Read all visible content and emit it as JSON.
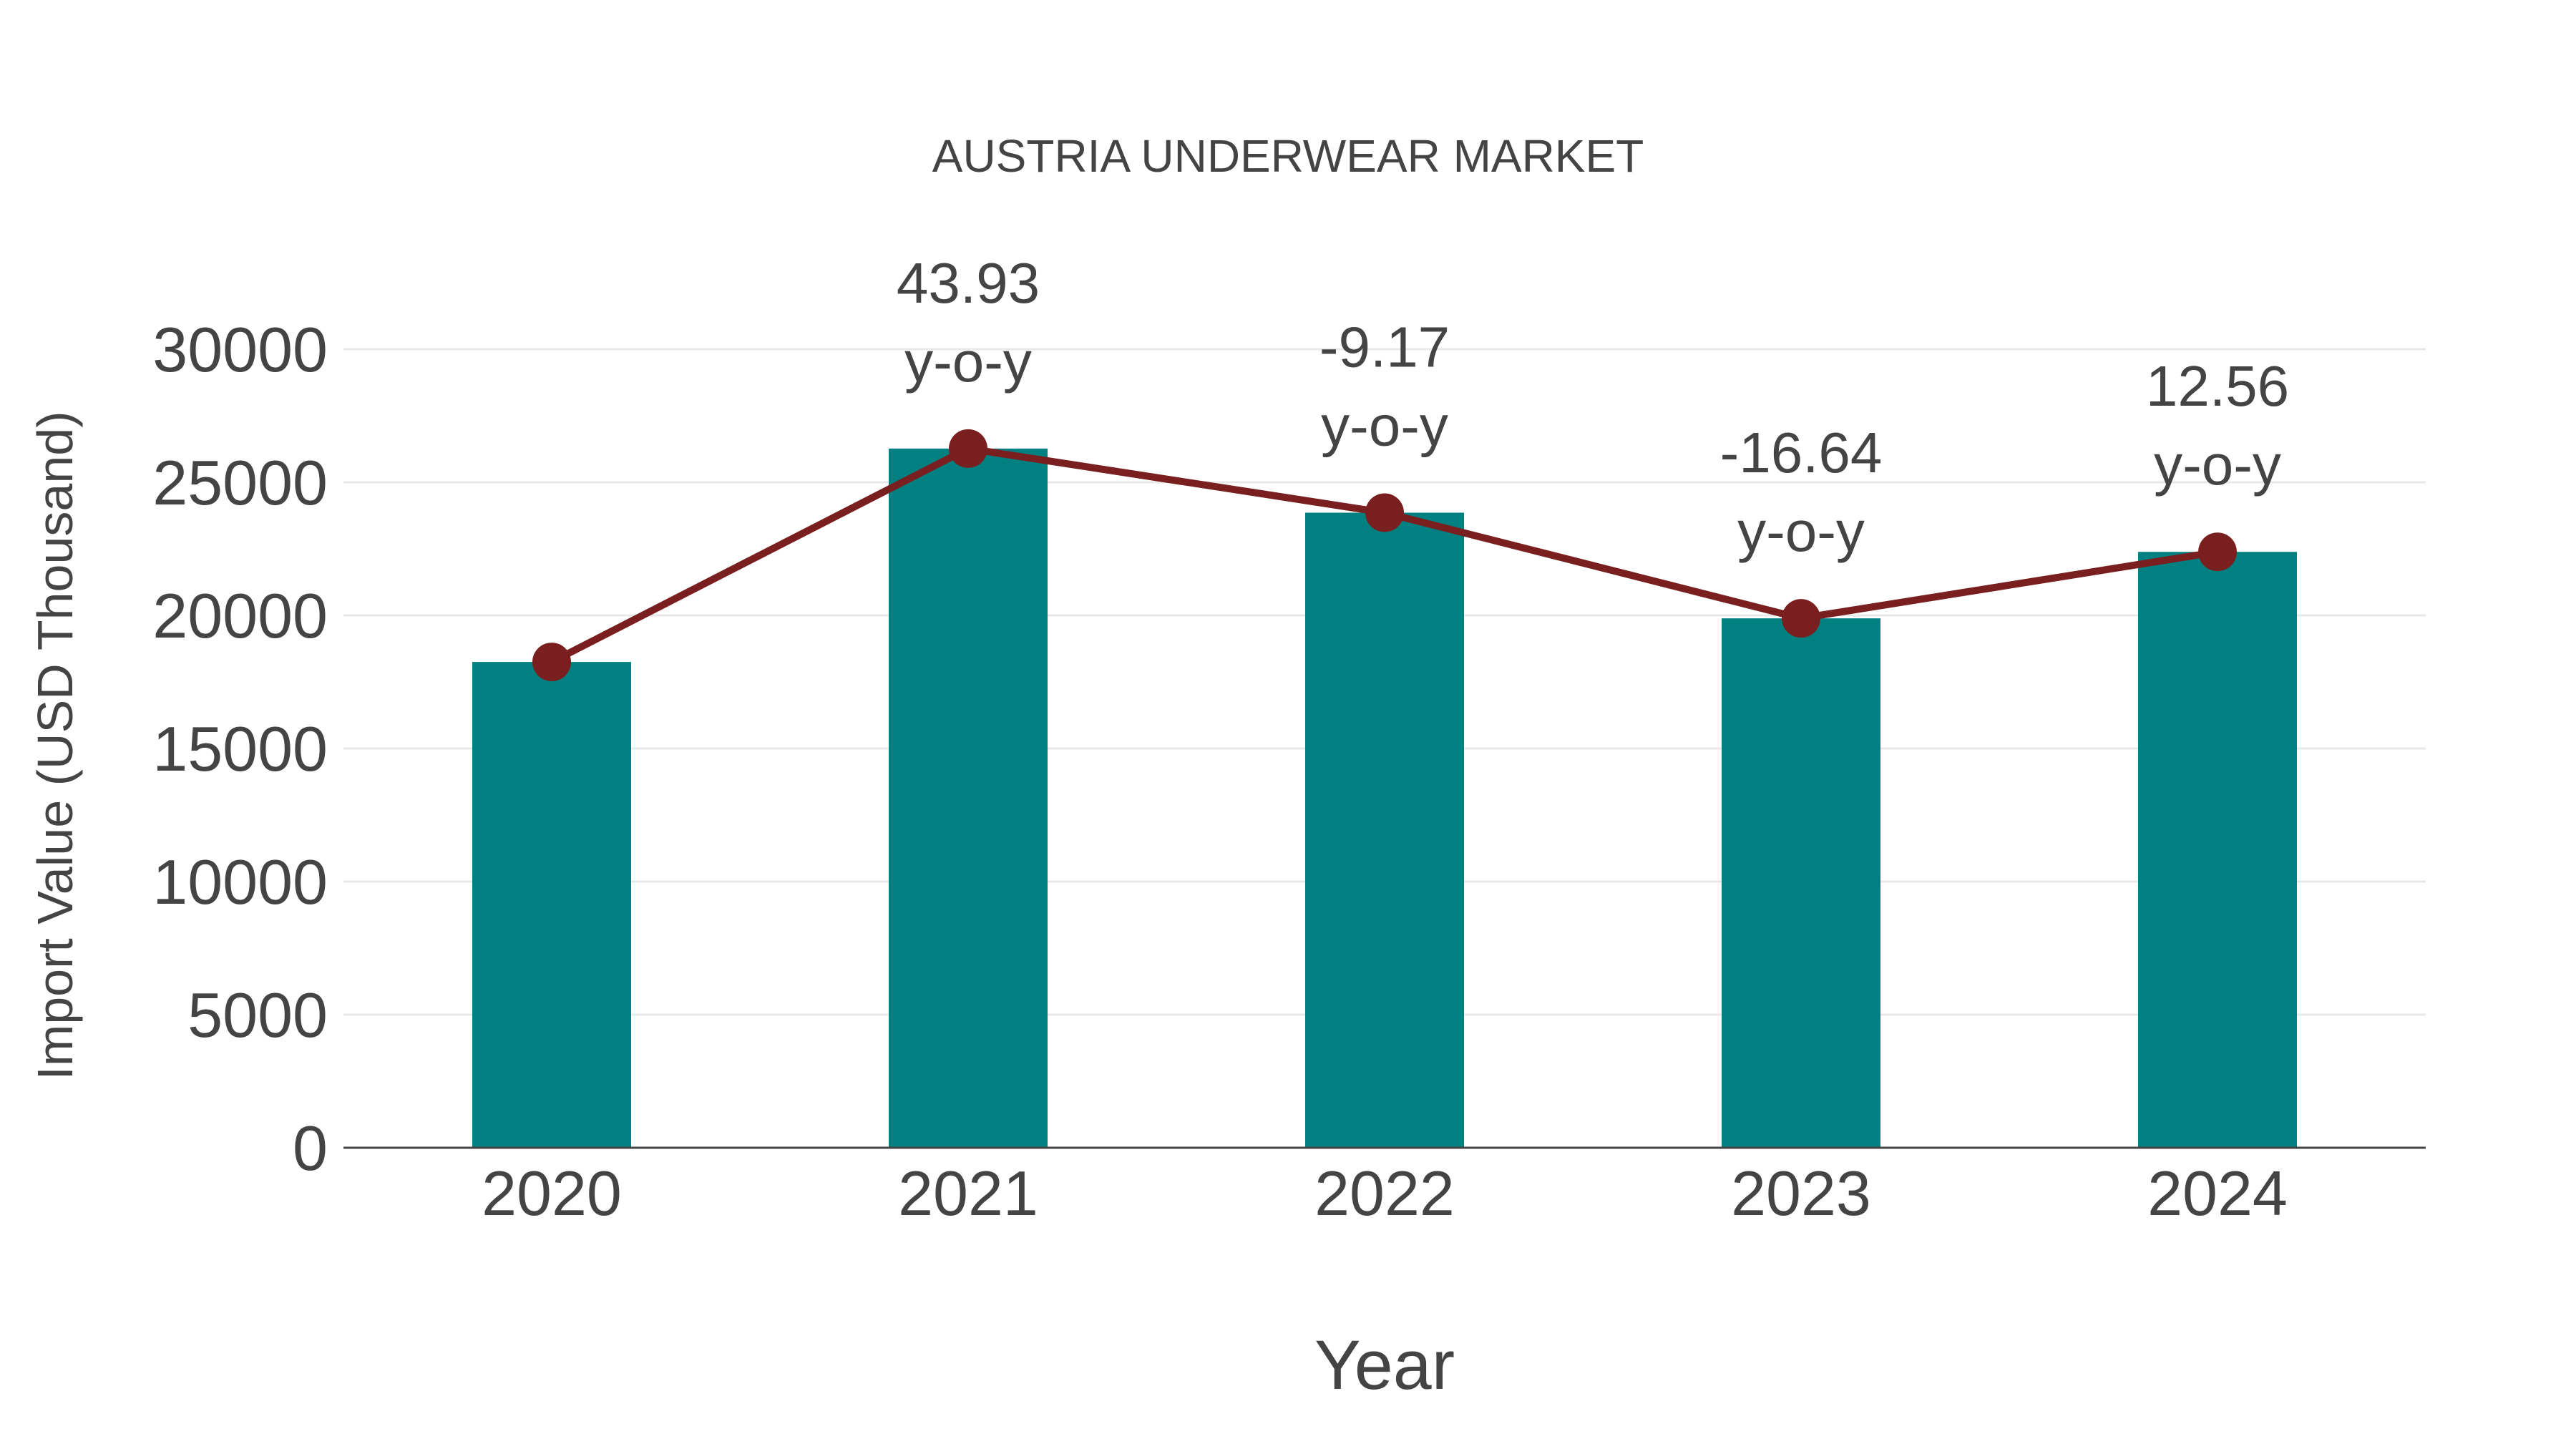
{
  "chart_data": {
    "type": "bar",
    "title": "AUSTRIA UNDERWEAR MARKET",
    "xlabel": "Year",
    "ylabel": "Import Value (USD Thousand)",
    "categories": [
      "2020",
      "2021",
      "2022",
      "2023",
      "2024"
    ],
    "series": [
      {
        "name": "Import Value",
        "kind": "bar",
        "color": "#008080",
        "values": [
          18250,
          26267,
          23858,
          19888,
          22386
        ]
      },
      {
        "name": "Import Value trend",
        "kind": "line",
        "color": "#7a1f1f",
        "values": [
          18250,
          26267,
          23858,
          19888,
          22386
        ]
      }
    ],
    "annotations": [
      {
        "category": "2021",
        "value": "43.93",
        "suffix": "y-o-y"
      },
      {
        "category": "2022",
        "value": "-9.17",
        "suffix": "y-o-y"
      },
      {
        "category": "2023",
        "value": "-16.64",
        "suffix": "y-o-y"
      },
      {
        "category": "2024",
        "value": "12.56",
        "suffix": "y-o-y"
      }
    ],
    "yticks": [
      0,
      5000,
      10000,
      15000,
      20000,
      25000,
      30000
    ],
    "ylim": [
      0,
      30000
    ],
    "grid": true,
    "legend": "none"
  },
  "colors": {
    "bar": "#008080",
    "line": "#7a1f1f",
    "text": "#444444",
    "grid": "#e8e8e8"
  }
}
